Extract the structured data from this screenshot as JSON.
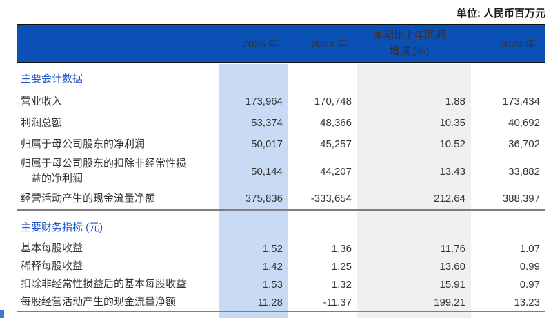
{
  "unit_label": "单位: 人民币百万元",
  "colors": {
    "header_bg": "#0a50b5",
    "header_text": "#f4f6fa",
    "col_2025_highlight": "#c9daf4",
    "col_change_highlight": "#f0f0f0",
    "section_title_text": "#2055c5",
    "body_text": "#333333",
    "divider": "#7f7f7f"
  },
  "table": {
    "header": {
      "y2025": "2025 年",
      "y2024": "2024 年",
      "change_line1": "本期比上年同期",
      "change_line2": "增减 (%)",
      "y2023": "2023 年"
    },
    "sections": [
      {
        "title": "主要会计数据",
        "divider_after": true,
        "rows": [
          {
            "label_lines": [
              "营业收入"
            ],
            "y2025": "173,964",
            "y2024": "170,748",
            "change": "1.88",
            "y2023": "173,434"
          },
          {
            "label_lines": [
              "利润总额"
            ],
            "y2025": "53,374",
            "y2024": "48,366",
            "change": "10.35",
            "y2023": "40,692"
          },
          {
            "label_lines": [
              "归属于母公司股东的净利润"
            ],
            "y2025": "50,017",
            "y2024": "45,257",
            "change": "10.52",
            "y2023": "36,702"
          },
          {
            "label_lines": [
              "归属于母公司股东的扣除非经常性损",
              "益的净利润"
            ],
            "tall": true,
            "y2025": "50,144",
            "y2024": "44,207",
            "change": "13.43",
            "y2023": "33,882"
          },
          {
            "label_lines": [
              "经营活动产生的现金流量净额"
            ],
            "y2025": "375,836",
            "y2024": "-333,654",
            "change": "212.64",
            "y2023": "388,397"
          }
        ]
      },
      {
        "title": "主要财务指标 (元)",
        "divider_after": true,
        "rows": [
          {
            "label_lines": [
              "基本每股收益"
            ],
            "y2025": "1.52",
            "y2024": "1.36",
            "change": "11.76",
            "y2023": "1.07"
          },
          {
            "label_lines": [
              "稀释每股收益"
            ],
            "y2025": "1.42",
            "y2024": "1.25",
            "change": "13.60",
            "y2023": "0.99"
          },
          {
            "label_lines": [
              "扣除非经常性损益后的基本每股收益"
            ],
            "y2025": "1.53",
            "y2024": "1.32",
            "change": "15.91",
            "y2023": "0.97"
          },
          {
            "label_lines": [
              "每股经营活动产生的现金流量净额"
            ],
            "y2025": "11.28",
            "y2024": "-11.37",
            "change": "199.21",
            "y2023": "13.23"
          }
        ]
      }
    ]
  }
}
